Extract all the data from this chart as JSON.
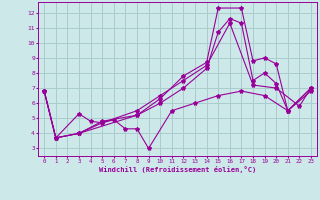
{
  "xlabel": "Windchill (Refroidissement éolien,°C)",
  "background_color": "#cce8e8",
  "grid_color": "#aacccc",
  "line_color": "#990099",
  "xlim": [
    -0.5,
    23.5
  ],
  "ylim": [
    2.5,
    12.7
  ],
  "yticks": [
    3,
    4,
    5,
    6,
    7,
    8,
    9,
    10,
    11,
    12
  ],
  "xticks": [
    0,
    1,
    2,
    3,
    4,
    5,
    6,
    7,
    8,
    9,
    10,
    11,
    12,
    13,
    14,
    15,
    16,
    17,
    18,
    19,
    20,
    21,
    22,
    23
  ],
  "lines": [
    {
      "x": [
        0,
        1,
        3,
        8,
        10,
        12,
        14,
        15,
        17,
        18,
        19,
        20,
        21,
        23
      ],
      "y": [
        6.8,
        3.7,
        4.0,
        5.2,
        6.3,
        7.8,
        8.7,
        12.3,
        12.3,
        8.8,
        9.0,
        8.6,
        5.5,
        7.0
      ]
    },
    {
      "x": [
        0,
        1,
        3,
        5,
        8,
        10,
        12,
        14,
        15,
        16,
        17,
        18,
        19,
        20,
        21,
        23
      ],
      "y": [
        6.8,
        3.7,
        4.0,
        4.8,
        5.2,
        6.0,
        7.0,
        8.3,
        10.7,
        11.6,
        11.3,
        7.5,
        8.0,
        7.3,
        5.5,
        7.0
      ]
    },
    {
      "x": [
        0,
        1,
        3,
        4,
        5,
        6,
        7,
        8,
        9,
        11,
        13,
        15,
        17,
        19,
        21,
        23
      ],
      "y": [
        6.8,
        3.7,
        5.3,
        4.8,
        4.7,
        4.9,
        4.3,
        4.3,
        3.0,
        5.5,
        6.0,
        6.5,
        6.8,
        6.5,
        5.5,
        6.8
      ]
    },
    {
      "x": [
        0,
        1,
        3,
        5,
        8,
        10,
        12,
        14,
        16,
        18,
        20,
        22,
        23
      ],
      "y": [
        6.8,
        3.7,
        4.0,
        4.7,
        5.5,
        6.5,
        7.5,
        8.5,
        11.3,
        7.2,
        7.0,
        5.8,
        7.0
      ]
    }
  ]
}
